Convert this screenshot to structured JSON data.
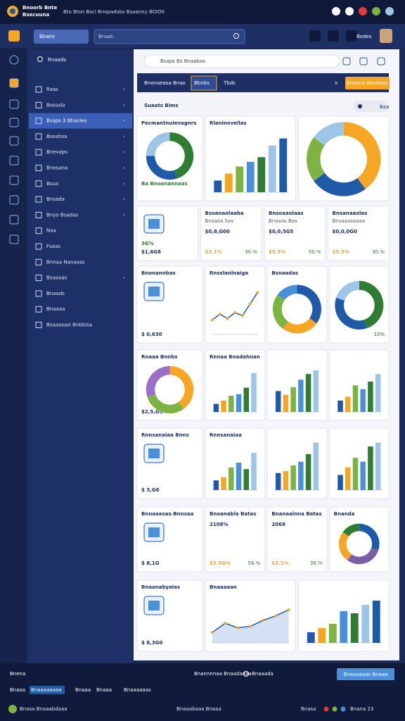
{
  "header": {
    "brand": [
      "Bnoorb Bnte",
      "Bsecuuna"
    ],
    "tagline": "Bto Bton Bscl Bnopadsbs Bsaanny Bt0O0"
  },
  "toolbar": {
    "search_left": "Bbwte",
    "search": "Bnaat:",
    "user": "Bodes"
  },
  "nav": {
    "search": "Rnaads",
    "active": 2,
    "items": [
      "Raas",
      "Beeada",
      "Bsaps 3 Bhaxies",
      "Bseahsa",
      "Bnevaps",
      "Bnesana",
      "Bsua",
      "Bnsada",
      "Bnyo Bsadas",
      "Naa",
      "Fsaas",
      "Bnnaa Nanasas",
      "Bsaaaas",
      "Bnaads",
      "Bnaaaa",
      "Bsaaasasi Bnbbisa"
    ]
  },
  "main": {
    "search": "Bsaps Bs Bnaabas",
    "tabs": [
      "Bnonaeasa Bnao",
      "Bbnbs",
      "Tbds"
    ],
    "active_tab": 1,
    "button": "Bnoona Bnodaas",
    "title": "Suaats Bims",
    "filter": "Baa",
    "palette": [
      "#1e5aa8",
      "#f5a623",
      "#7cb342",
      "#4a90d9",
      "#2e7d32",
      "#9ec5e8"
    ],
    "rows": [
      [
        {
          "kind": "donut",
          "title": "Pecmantnulevagnrs",
          "note": "Ba Bnoanannaas",
          "values": [
            45,
            30,
            25
          ],
          "colors": [
            "#2e7d32",
            "#1e5aa8",
            "#9ec5e8"
          ]
        },
        {
          "kind": "bar",
          "title": "Rlaninovellas",
          "values": [
            10,
            16,
            22,
            26,
            30,
            40,
            46
          ],
          "ylim": [
            0,
            50
          ]
        },
        {
          "kind": "donut",
          "values": [
            40,
            25,
            20,
            15
          ],
          "colors": [
            "#f5a623",
            "#1e5aa8",
            "#7cb342",
            "#9ec5e8"
          ]
        }
      ],
      [
        {
          "kind": "icon",
          "value": "$1,6G8",
          "note": "3G%"
        },
        {
          "kind": "kpi",
          "title": "Bsoanaolaaba",
          "sub": "Bnsaoa Sas",
          "value": "$0,8,G00",
          "note": "$3.1%",
          "note2": "30.%"
        },
        {
          "kind": "kpi",
          "title": "Bnsoaaolaas",
          "sub": "Bnaaas Bas",
          "value": "$0,0,5G5",
          "note": "$5.5%",
          "note2": "50.%"
        },
        {
          "kind": "kpi",
          "title": "Bnsanaaolas",
          "sub": "Bnsaaasaaaa",
          "value": "$0,0,0G0",
          "note": "$3.5%",
          "note2": "30.%"
        }
      ],
      [
        {
          "kind": "icon",
          "title": "Bnonannbas",
          "value": "$ 0,630"
        },
        {
          "kind": "line",
          "title": "Rnsslanlnaiga",
          "values": [
            20,
            28,
            22,
            30,
            26,
            42,
            58
          ],
          "ylim": [
            0,
            70
          ]
        },
        {
          "kind": "donut",
          "title": "Bsnaadas",
          "values": [
            35,
            25,
            25,
            15
          ],
          "colors": [
            "#1e5aa8",
            "#f5a623",
            "#7cb342",
            "#4a90d9"
          ]
        },
        {
          "kind": "donut",
          "note2": "33%",
          "values": [
            45,
            35,
            20
          ],
          "colors": [
            "#2e7d32",
            "#1e5aa8",
            "#9ec5e8"
          ]
        }
      ],
      [
        {
          "kind": "donut",
          "title": "Rnaaa Bnnbs",
          "value": "$2,5,G5",
          "values": [
            40,
            30,
            30
          ],
          "colors": [
            "#f5a623",
            "#7cb342",
            "#9b6fc7"
          ]
        },
        {
          "kind": "bar",
          "title": "Rnnaa Bnadahnan",
          "values": [
            10,
            14,
            20,
            22,
            30,
            48
          ],
          "ylim": [
            0,
            55
          ]
        },
        {
          "kind": "bar",
          "values": [
            22,
            18,
            26,
            34,
            40,
            44
          ],
          "ylim": [
            0,
            55
          ]
        },
        {
          "kind": "bar",
          "values": [
            12,
            16,
            28,
            24,
            32,
            40
          ],
          "ylim": [
            0,
            55
          ]
        }
      ],
      [
        {
          "kind": "icon",
          "title": "Rnnsanaiaa Bnns",
          "value": "$ 3,G6"
        },
        {
          "kind": "bar",
          "title": "Rnnsanaiaa",
          "values": [
            12,
            16,
            28,
            34,
            26,
            46
          ],
          "ylim": [
            0,
            55
          ]
        },
        {
          "kind": "bar",
          "values": [
            18,
            20,
            26,
            30,
            38,
            50
          ],
          "ylim": [
            0,
            55
          ]
        },
        {
          "kind": "bar",
          "values": [
            16,
            24,
            34,
            30,
            46,
            50
          ],
          "ylim": [
            0,
            55
          ]
        }
      ],
      [
        {
          "kind": "icon",
          "title": "Bnnaaasas-Bnnsaa",
          "value": "$ 8,1G"
        },
        {
          "kind": "kpi",
          "title": "Bnoanabla Batas",
          "value": "2108%",
          "note": "$3.5G%",
          "note2": "56.%"
        },
        {
          "kind": "kpi",
          "title": "Bnanaalnna Batas",
          "value": "2068",
          "note": "$3.1%",
          "note2": "36.%"
        },
        {
          "kind": "donut",
          "title": "Bnanda",
          "values": [
            30,
            30,
            25,
            15
          ],
          "colors": [
            "#1e5aa8",
            "#7b5ea7",
            "#f5a623",
            "#2e7d32"
          ]
        }
      ],
      [
        {
          "kind": "icon",
          "title": "Bnaanabyalas",
          "value": "$ 8,3G0"
        },
        {
          "kind": "area",
          "title": "Bnaaaaan",
          "values": [
            14,
            26,
            20,
            22,
            30,
            36,
            44
          ],
          "ylim": [
            0,
            60
          ]
        },
        {
          "kind": "bar",
          "values": [
            10,
            14,
            18,
            30,
            28,
            36,
            40
          ],
          "ylim": [
            0,
            50
          ]
        }
      ]
    ]
  },
  "footer": {
    "left": "Bnena",
    "center": "Bnannnnaa Bnaadadaa",
    "status": "Bnaaada",
    "button": "Bnaaaaaas Bnaaa",
    "links": [
      "Bnaoa",
      "Bnaaaaaaaa",
      "Bnaaa",
      "Bnaaa",
      "Bnaaaaaas"
    ],
    "bottom": [
      "Bnasa Bnaaabdaaa",
      "Bnaaabaaa Bnaaa",
      "Bnasa",
      "Bnana 23"
    ]
  }
}
